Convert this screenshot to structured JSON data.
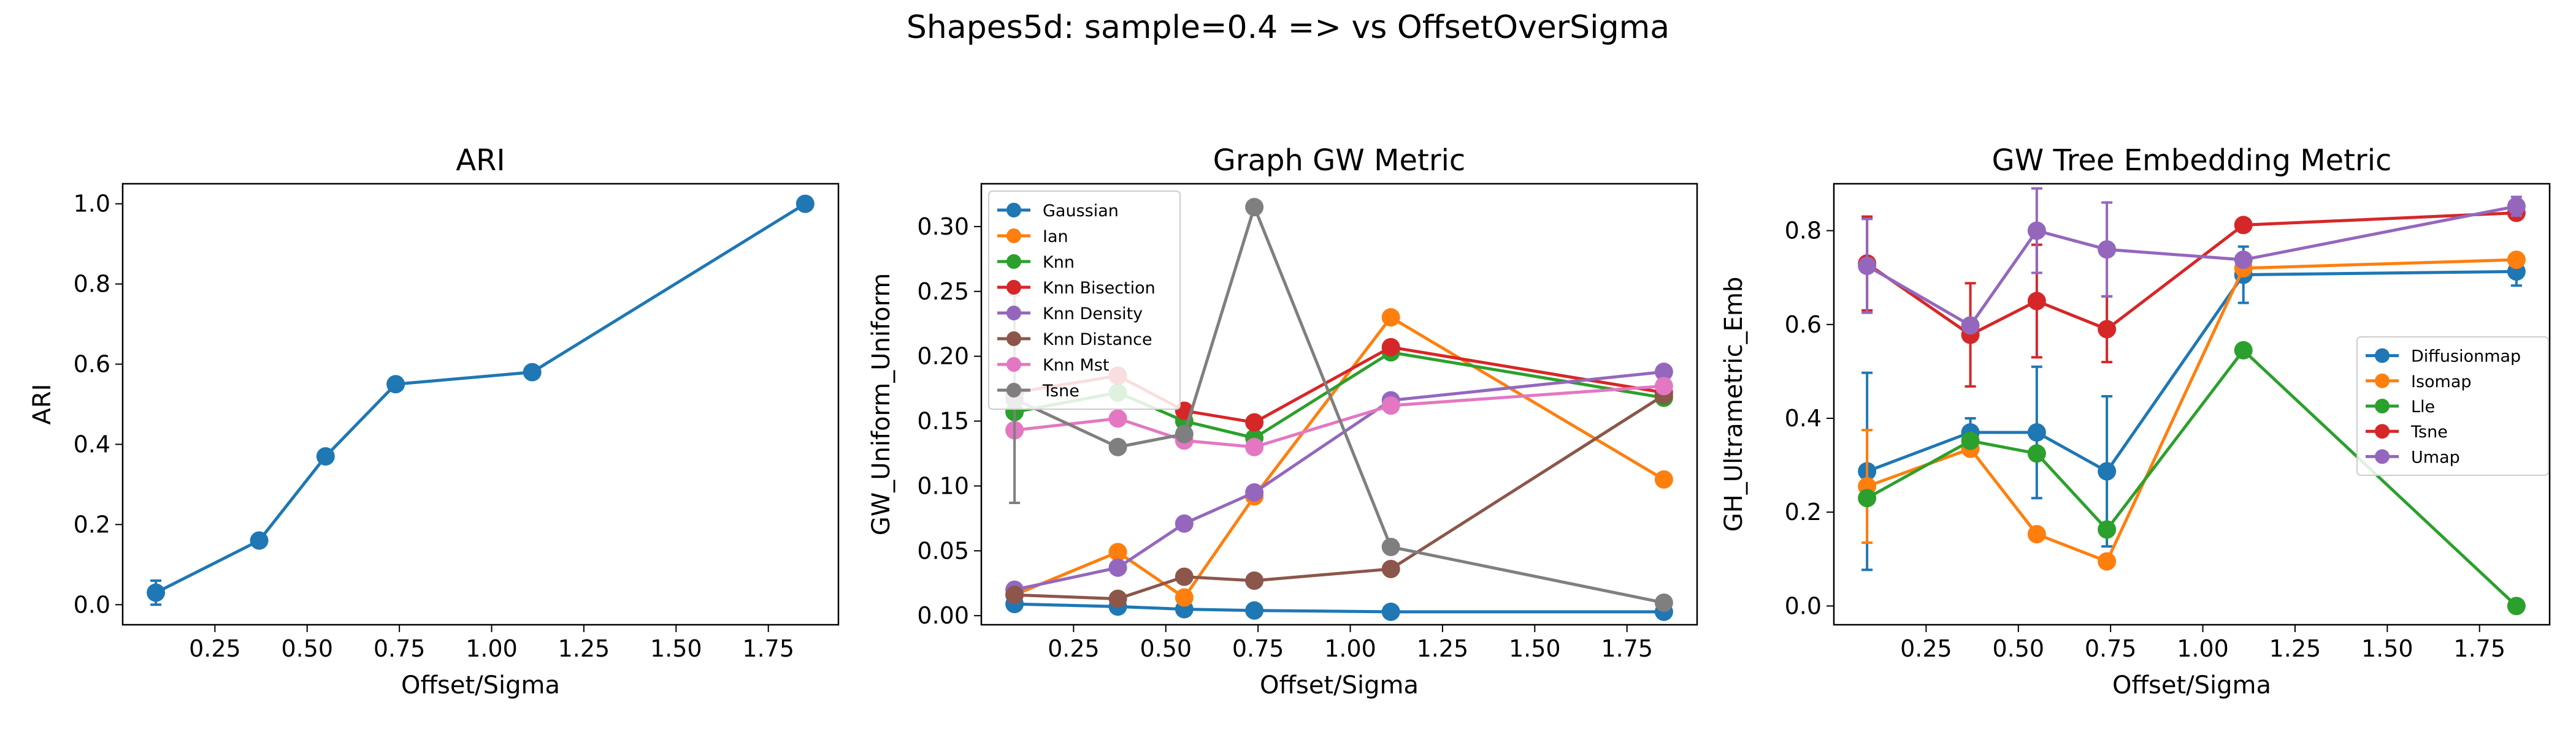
{
  "suptitle": "Shapes5d: sample=0.4 => vs OffsetOverSigma",
  "chart_data": [
    {
      "type": "line",
      "title": "ARI",
      "xlabel": "Offset/Sigma",
      "ylabel": "ARI",
      "xlim": [
        0.0,
        1.94
      ],
      "ylim": [
        -0.05,
        1.05
      ],
      "xticks": [
        0.25,
        0.5,
        0.75,
        1.0,
        1.25,
        1.5,
        1.75
      ],
      "xtick_labels": [
        "0.25",
        "0.50",
        "0.75",
        "1.00",
        "1.25",
        "1.50",
        "1.75"
      ],
      "yticks": [
        0.0,
        0.2,
        0.4,
        0.6,
        0.8,
        1.0
      ],
      "ytick_labels": [
        "0.0",
        "0.2",
        "0.4",
        "0.6",
        "0.8",
        "1.0"
      ],
      "legend": null,
      "x": [
        0.09,
        0.37,
        0.55,
        0.74,
        1.11,
        1.85
      ],
      "series": [
        {
          "name": "",
          "color": "#1f77b4",
          "values": [
            0.03,
            0.16,
            0.37,
            0.55,
            0.58,
            1.0
          ],
          "err": [
            0.03,
            0.0,
            0.0,
            0.0,
            0.0,
            0.0
          ]
        }
      ]
    },
    {
      "type": "line",
      "title": "Graph GW Metric",
      "xlabel": "Offset/Sigma",
      "ylabel": "GW_Uniform_Uniform",
      "xlim": [
        0.0,
        1.94
      ],
      "ylim": [
        -0.007,
        0.333
      ],
      "xticks": [
        0.25,
        0.5,
        0.75,
        1.0,
        1.25,
        1.5,
        1.75
      ],
      "xtick_labels": [
        "0.25",
        "0.50",
        "0.75",
        "1.00",
        "1.25",
        "1.50",
        "1.75"
      ],
      "yticks": [
        0.0,
        0.05,
        0.1,
        0.15,
        0.2,
        0.25,
        0.3
      ],
      "ytick_labels": [
        "0.00",
        "0.05",
        "0.10",
        "0.15",
        "0.20",
        "0.25",
        "0.30"
      ],
      "legend": "upper-left",
      "x": [
        0.09,
        0.37,
        0.55,
        0.74,
        1.11,
        1.85
      ],
      "series": [
        {
          "name": "Gaussian",
          "color": "#1f77b4",
          "values": [
            0.009,
            0.007,
            0.005,
            0.004,
            0.003,
            0.003
          ]
        },
        {
          "name": "Ian",
          "color": "#ff7f0e",
          "values": [
            0.016,
            0.049,
            0.014,
            0.092,
            0.23,
            0.105
          ]
        },
        {
          "name": "Knn",
          "color": "#2ca02c",
          "values": [
            0.157,
            0.172,
            0.15,
            0.137,
            0.203,
            0.168
          ]
        },
        {
          "name": "Knn Bisection",
          "color": "#d62728",
          "values": [
            0.172,
            0.185,
            0.158,
            0.149,
            0.207,
            0.172
          ]
        },
        {
          "name": "Knn Density",
          "color": "#9467bd",
          "values": [
            0.02,
            0.037,
            0.071,
            0.095,
            0.166,
            0.188
          ]
        },
        {
          "name": "Knn Distance",
          "color": "#8c564b",
          "values": [
            0.016,
            0.013,
            0.03,
            0.027,
            0.036,
            0.17
          ]
        },
        {
          "name": "Knn Mst",
          "color": "#e377c2",
          "values": [
            0.143,
            0.152,
            0.135,
            0.13,
            0.162,
            0.177
          ]
        },
        {
          "name": "Tsne",
          "color": "#7f7f7f",
          "values": [
            0.167,
            0.13,
            0.14,
            0.315,
            0.053,
            0.01
          ],
          "err": [
            0.08,
            0.0,
            0.0,
            0.0,
            0.0,
            0.0
          ]
        }
      ]
    },
    {
      "type": "line",
      "title": "GW Tree Embedding Metric",
      "xlabel": "Offset/Sigma",
      "ylabel": "GH_Ultrametric_Emb",
      "xlim": [
        0.0,
        1.94
      ],
      "ylim": [
        -0.04,
        0.9
      ],
      "xticks": [
        0.25,
        0.5,
        0.75,
        1.0,
        1.25,
        1.5,
        1.75
      ],
      "xtick_labels": [
        "0.25",
        "0.50",
        "0.75",
        "1.00",
        "1.25",
        "1.50",
        "1.75"
      ],
      "yticks": [
        0.0,
        0.2,
        0.4,
        0.6,
        0.8
      ],
      "ytick_labels": [
        "0.0",
        "0.2",
        "0.4",
        "0.6",
        "0.8"
      ],
      "legend": "center-right",
      "x": [
        0.09,
        0.37,
        0.55,
        0.74,
        1.11,
        1.85
      ],
      "series": [
        {
          "name": "Diffusionmap",
          "color": "#1f77b4",
          "values": [
            0.287,
            0.37,
            0.37,
            0.287,
            0.706,
            0.713
          ],
          "err": [
            0.21,
            0.03,
            0.14,
            0.16,
            0.06,
            0.03
          ]
        },
        {
          "name": "Isomap",
          "color": "#ff7f0e",
          "values": [
            0.255,
            0.335,
            0.153,
            0.095,
            0.72,
            0.738
          ],
          "err": [
            0.12,
            0.0,
            0.0,
            0.0,
            0.0,
            0.0
          ]
        },
        {
          "name": "Lle",
          "color": "#2ca02c",
          "values": [
            0.23,
            0.352,
            0.325,
            0.163,
            0.545,
            0.0
          ],
          "err": [
            0.0,
            0.0,
            0.0,
            0.0,
            0.0,
            0.0
          ]
        },
        {
          "name": "Tsne",
          "color": "#d62728",
          "values": [
            0.73,
            0.578,
            0.65,
            0.59,
            0.812,
            0.838
          ],
          "err": [
            0.1,
            0.11,
            0.12,
            0.07,
            0.0,
            0.0
          ]
        },
        {
          "name": "Umap",
          "color": "#9467bd",
          "values": [
            0.725,
            0.598,
            0.8,
            0.76,
            0.738,
            0.852
          ],
          "err": [
            0.1,
            0.0,
            0.09,
            0.1,
            0.0,
            0.02
          ]
        }
      ]
    }
  ]
}
